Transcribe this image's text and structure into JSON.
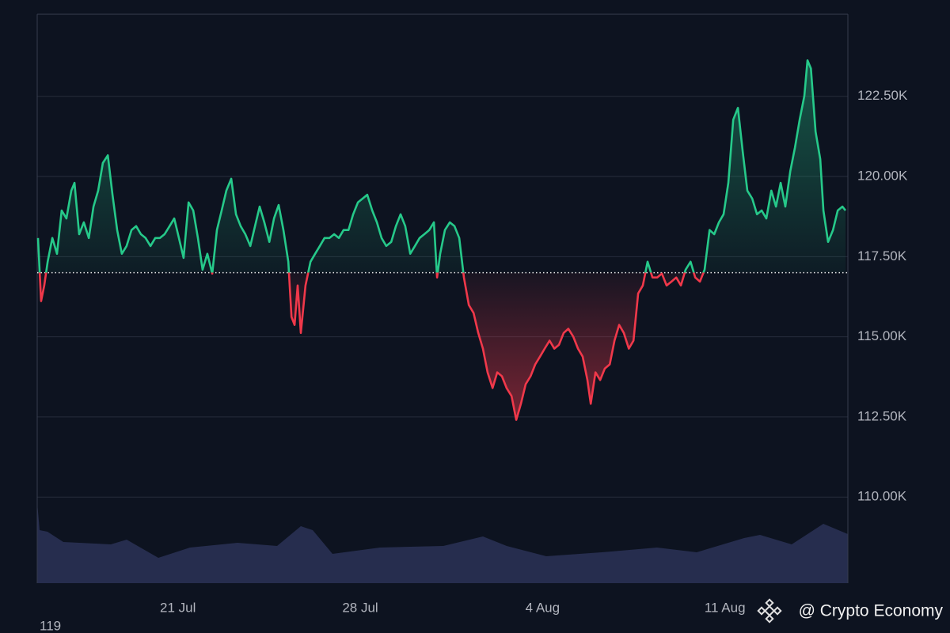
{
  "chart_data": {
    "type": "line",
    "x": [
      15.63,
      15.75,
      15.87,
      16.0,
      16.18,
      16.36,
      16.54,
      16.72,
      16.91,
      17.03,
      17.21,
      17.39,
      17.58,
      17.76,
      17.94,
      18.12,
      18.31,
      18.49,
      18.67,
      18.85,
      19.03,
      19.22,
      19.4,
      19.58,
      19.76,
      19.95,
      20.13,
      20.31,
      20.49,
      20.68,
      20.86,
      21.04,
      21.22,
      21.41,
      21.59,
      21.77,
      21.95,
      22.13,
      22.32,
      22.5,
      22.68,
      22.86,
      23.05,
      23.23,
      23.41,
      23.59,
      23.78,
      23.96,
      24.14,
      24.32,
      24.51,
      24.69,
      24.87,
      25.05,
      25.24,
      25.36,
      25.48,
      25.6,
      25.72,
      25.9,
      26.09,
      26.27,
      26.45,
      26.63,
      26.82,
      27.0,
      27.18,
      27.36,
      27.55,
      27.73,
      27.91,
      28.09,
      28.27,
      28.46,
      28.64,
      28.82,
      29.0,
      29.19,
      29.37,
      29.55,
      29.73,
      29.92,
      30.1,
      30.28,
      30.46,
      30.65,
      30.83,
      30.95,
      31.07,
      31.25,
      31.44,
      31.62,
      31.8,
      31.98,
      32.17,
      32.35,
      32.53,
      32.71,
      32.89,
      33.08,
      33.26,
      33.44,
      33.62,
      33.81,
      33.99,
      34.17,
      34.35,
      34.54,
      34.72,
      34.9,
      35.08,
      35.27,
      35.45,
      35.63,
      35.81,
      35.99,
      36.18,
      36.36,
      36.54,
      36.72,
      36.85,
      37.03,
      37.21,
      37.39,
      37.58,
      37.76,
      37.94,
      38.12,
      38.31,
      38.49,
      38.67,
      38.85,
      39.03,
      39.22,
      39.4,
      39.58,
      39.76,
      39.95,
      40.13,
      40.31,
      40.49,
      40.68,
      40.86,
      41.04,
      41.22,
      41.41,
      41.59,
      41.77,
      41.95,
      42.13,
      42.32,
      42.5,
      42.68,
      42.86,
      43.05,
      43.23,
      43.41,
      43.59,
      43.78,
      43.96,
      44.14,
      44.32,
      44.51,
      44.69,
      44.87,
      45.05,
      45.17,
      45.3,
      45.48,
      45.66,
      45.78,
      45.96,
      46.15,
      46.33,
      46.51,
      46.63
    ],
    "values": [
      118080,
      116110,
      116600,
      117340,
      118080,
      117590,
      118940,
      118690,
      119560,
      119800,
      118200,
      118570,
      118080,
      119060,
      119560,
      120420,
      120660,
      119430,
      118330,
      117590,
      117830,
      118330,
      118450,
      118200,
      118080,
      117830,
      118080,
      118080,
      118200,
      118450,
      118690,
      118080,
      117460,
      119190,
      118940,
      118080,
      117090,
      117590,
      116970,
      118330,
      118940,
      119560,
      119930,
      118820,
      118450,
      118200,
      117830,
      118450,
      119060,
      118570,
      117960,
      118690,
      119110,
      118330,
      117340,
      115620,
      115370,
      116600,
      115120,
      116600,
      117340,
      117590,
      117830,
      118080,
      118080,
      118200,
      118080,
      118330,
      118330,
      118820,
      119190,
      119310,
      119430,
      118940,
      118570,
      118080,
      117830,
      117960,
      118450,
      118820,
      118450,
      117590,
      117830,
      118080,
      118200,
      118330,
      118570,
      116850,
      117590,
      118330,
      118570,
      118450,
      118080,
      116850,
      115990,
      115740,
      115120,
      114630,
      113890,
      113400,
      113890,
      113770,
      113400,
      113150,
      112410,
      112910,
      113520,
      113770,
      114140,
      114380,
      114630,
      114880,
      114630,
      114750,
      115120,
      115250,
      115000,
      114630,
      114380,
      113650,
      112910,
      113890,
      113650,
      114010,
      114140,
      114880,
      115370,
      115120,
      114630,
      114880,
      116350,
      116600,
      117340,
      116850,
      116850,
      116970,
      116600,
      116720,
      116850,
      116600,
      117090,
      117340,
      116850,
      116720,
      117090,
      118330,
      118200,
      118570,
      118820,
      119800,
      121770,
      122140,
      120790,
      119560,
      119310,
      118820,
      118940,
      118690,
      119560,
      119060,
      119800,
      119060,
      120170,
      120910,
      121770,
      122510,
      123620,
      123370,
      121400,
      120540,
      118940,
      117960,
      118330,
      118940,
      119060,
      118940
    ],
    "baseline": 117000,
    "color_up": "#26c98a",
    "color_down": "#f0384a",
    "xlim": [
      15.6,
      46.72
    ],
    "xticks": [
      {
        "value": 21,
        "label": "21 Jul"
      },
      {
        "value": 28,
        "label": "28 Jul"
      },
      {
        "value": 35,
        "label": "4 Aug"
      },
      {
        "value": 42,
        "label": "11 Aug"
      }
    ],
    "ylim": [
      107315,
      125060
    ],
    "yticks": [
      {
        "value": 110000,
        "label": "110.00K"
      },
      {
        "value": 112500,
        "label": "112.50K"
      },
      {
        "value": 115000,
        "label": "115.00K"
      },
      {
        "value": 117500,
        "label": "117.50K"
      },
      {
        "value": 120000,
        "label": "120.00K"
      },
      {
        "value": 122500,
        "label": "122.50K"
      }
    ],
    "grid": true,
    "corner_label": "119",
    "watermark": "@ Crypto Economy"
  }
}
